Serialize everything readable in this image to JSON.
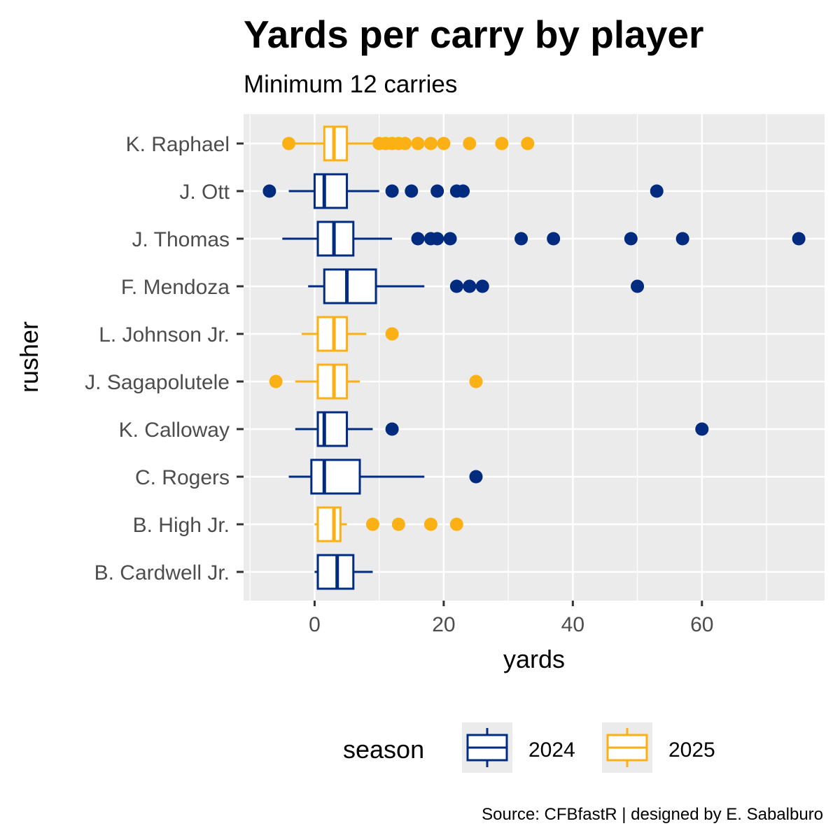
{
  "chart_data": {
    "type": "boxplot",
    "title": "Yards per carry by player",
    "subtitle": "Minimum 12 carries",
    "xlabel": "yards",
    "ylabel": "rusher",
    "caption": "Source: CFBfastR | designed by E. Sabalburo",
    "xlim": [
      -11,
      79
    ],
    "x_ticks": [
      0,
      20,
      40,
      60
    ],
    "grid": true,
    "legend": {
      "title": "season",
      "position": "bottom",
      "entries": [
        {
          "label": "2024",
          "color": "#002b7f"
        },
        {
          "label": "2025",
          "color": "#fbb116"
        }
      ]
    },
    "series": [
      {
        "rusher": "K. Raphael",
        "season": "2025",
        "whisker_low": -4,
        "q1": 1.5,
        "median": 3,
        "q3": 5,
        "whisker_high": 9,
        "outliers": [
          -4,
          10,
          11,
          12,
          13,
          14,
          16,
          18,
          20,
          24,
          29,
          33
        ]
      },
      {
        "rusher": "J. Ott",
        "season": "2024",
        "whisker_low": -4,
        "q1": 0,
        "median": 1.5,
        "q3": 5,
        "whisker_high": 10,
        "outliers": [
          -7,
          12,
          15,
          19,
          22,
          23,
          53
        ]
      },
      {
        "rusher": "J. Thomas",
        "season": "2024",
        "whisker_low": -5,
        "q1": 0.5,
        "median": 3,
        "q3": 6,
        "whisker_high": 12,
        "outliers": [
          16,
          18,
          19,
          21,
          32,
          37,
          49,
          57,
          75
        ]
      },
      {
        "rusher": "F. Mendoza",
        "season": "2024",
        "whisker_low": -1,
        "q1": 1.5,
        "median": 5,
        "q3": 9.5,
        "whisker_high": 17,
        "outliers": [
          22,
          24,
          26,
          50
        ]
      },
      {
        "rusher": "L. Johnson Jr.",
        "season": "2025",
        "whisker_low": -2,
        "q1": 0.5,
        "median": 3,
        "q3": 5,
        "whisker_high": 8,
        "outliers": [
          12
        ]
      },
      {
        "rusher": "J. Sagapolutele",
        "season": "2025",
        "whisker_low": -3,
        "q1": 0.5,
        "median": 3,
        "q3": 5,
        "whisker_high": 7,
        "outliers": [
          -6,
          25
        ]
      },
      {
        "rusher": "K. Calloway",
        "season": "2024",
        "whisker_low": -3,
        "q1": 0.5,
        "median": 1.5,
        "q3": 5,
        "whisker_high": 9,
        "outliers": [
          12,
          60
        ]
      },
      {
        "rusher": "C. Rogers",
        "season": "2024",
        "whisker_low": -4,
        "q1": -0.5,
        "median": 1.5,
        "q3": 7,
        "whisker_high": 17,
        "outliers": [
          25
        ]
      },
      {
        "rusher": "B. High Jr.",
        "season": "2025",
        "whisker_low": 0,
        "q1": 0.5,
        "median": 3,
        "q3": 4,
        "whisker_high": 5,
        "outliers": [
          9,
          13,
          18,
          22
        ]
      },
      {
        "rusher": "B. Cardwell Jr.",
        "season": "2024",
        "whisker_low": 0,
        "q1": 0.5,
        "median": 3.5,
        "q3": 6,
        "whisker_high": 9,
        "outliers": []
      }
    ]
  }
}
